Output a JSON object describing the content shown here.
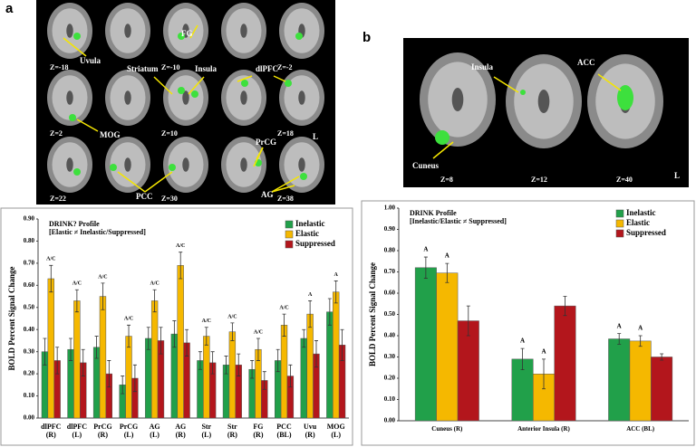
{
  "panel_a": {
    "label": "a",
    "slices": [
      "Z=-18",
      "Z=-10",
      "Z=-2",
      "Z=2",
      "Z=10",
      "Z=18",
      "Z=22",
      "Z=30",
      "Z=38"
    ],
    "regions": [
      "Uvula",
      "FG",
      "Striatum",
      "Insula",
      "dlPFC",
      "MOG",
      "PrCG",
      "PCC",
      "AG"
    ],
    "orientation": "L"
  },
  "panel_b": {
    "label": "b",
    "slices": [
      "Z=8",
      "Z=12",
      "Z=40"
    ],
    "regions": [
      "Insula",
      "ACC",
      "Cuneus"
    ],
    "orientation": "L"
  },
  "chart_data": [
    {
      "type": "bar",
      "title": "DRINK? Profile",
      "subtitle": "[Elastic ≠ Inelastic/Suppressed]",
      "y_label": "BOLD Percent Signal Change",
      "categories": [
        "dlPFC\n(R)",
        "dlPFC\n(L)",
        "PrCG\n(R)",
        "PrCG\n(L)",
        "AG\n(L)",
        "AG\n(R)",
        "Str\n(L)",
        "Str\n(R)",
        "FG\n(R)",
        "PCC\n(BL)",
        "Uvu\n(R)",
        "MOG\n(L)"
      ],
      "annotations": [
        "A/C",
        "A/C",
        "A/C",
        "A/C",
        "A/C",
        "A/C",
        "A/C",
        "A/C",
        "A/C",
        "A/C",
        "A",
        "A"
      ],
      "series": [
        {
          "name": "Inelastic",
          "color": "#21a04a",
          "values": [
            0.3,
            0.31,
            0.32,
            0.15,
            0.36,
            0.38,
            0.26,
            0.24,
            0.22,
            0.26,
            0.36,
            0.48
          ],
          "errors": [
            0.06,
            0.05,
            0.05,
            0.04,
            0.05,
            0.06,
            0.04,
            0.04,
            0.04,
            0.05,
            0.04,
            0.06
          ]
        },
        {
          "name": "Elastic",
          "color": "#f5b800",
          "values": [
            0.63,
            0.53,
            0.55,
            0.37,
            0.53,
            0.69,
            0.37,
            0.39,
            0.31,
            0.42,
            0.47,
            0.57
          ],
          "errors": [
            0.06,
            0.05,
            0.06,
            0.05,
            0.05,
            0.06,
            0.04,
            0.04,
            0.05,
            0.05,
            0.06,
            0.05
          ]
        },
        {
          "name": "Suppressed",
          "color": "#b3161c",
          "values": [
            0.26,
            0.25,
            0.2,
            0.18,
            0.35,
            0.34,
            0.25,
            0.24,
            0.17,
            0.19,
            0.29,
            0.33
          ],
          "errors": [
            0.06,
            0.06,
            0.06,
            0.06,
            0.06,
            0.06,
            0.05,
            0.05,
            0.04,
            0.05,
            0.06,
            0.07
          ]
        }
      ],
      "ylim": [
        0,
        0.9
      ],
      "yticks": [
        {
          "value": 0,
          "label": "0.00"
        },
        {
          "value": 0.1,
          "label": "0.10"
        },
        {
          "value": 0.2,
          "label": "0.20"
        },
        {
          "value": 0.3,
          "label": "0.30"
        },
        {
          "value": 0.4,
          "label": "0.40"
        },
        {
          "value": 0.5,
          "label": "0.50"
        },
        {
          "value": 0.6,
          "label": "0.60"
        },
        {
          "value": 0.7,
          "label": "0.70"
        },
        {
          "value": 0.8,
          "label": "0.80"
        },
        {
          "value": 0.9,
          "label": "0.90"
        }
      ],
      "legend": "upper right"
    },
    {
      "type": "bar",
      "title": "DRINK Profile",
      "subtitle": "[Inelastic/Elastic ≠ Suppressed]",
      "y_label": "BOLD Percent Signal Change",
      "categories": [
        "Cuneus (R)",
        "Anterior Insula (R)",
        "ACC (BL)"
      ],
      "series": [
        {
          "name": "Inelastic",
          "color": "#21a04a",
          "values": [
            0.72,
            0.29,
            0.385
          ],
          "errors": [
            0.05,
            0.05,
            0.025
          ],
          "annotations": [
            "A",
            "A",
            "A"
          ]
        },
        {
          "name": "Elastic",
          "color": "#f5b800",
          "values": [
            0.695,
            0.22,
            0.375
          ],
          "errors": [
            0.045,
            0.07,
            0.025
          ],
          "annotations": [
            "A",
            "A",
            "A"
          ]
        },
        {
          "name": "Suppressed",
          "color": "#b3161c",
          "values": [
            0.47,
            0.54,
            0.3
          ],
          "errors": [
            0.07,
            0.045,
            0.015
          ]
        }
      ],
      "ylim": [
        0,
        1
      ],
      "yticks": [
        {
          "value": 0,
          "label": "0.00"
        },
        {
          "value": 0.1,
          "label": "0.10"
        },
        {
          "value": 0.2,
          "label": "0.20"
        },
        {
          "value": 0.3,
          "label": "0.30"
        },
        {
          "value": 0.4,
          "label": "0.40"
        },
        {
          "value": 0.5,
          "label": "0.50"
        },
        {
          "value": 0.6,
          "label": "0.60"
        },
        {
          "value": 0.7,
          "label": "0.70"
        },
        {
          "value": 0.8,
          "label": "0.80"
        },
        {
          "value": 0.9,
          "label": "0.90"
        },
        {
          "value": 1,
          "label": "1.00"
        }
      ],
      "legend": "upper right"
    }
  ]
}
